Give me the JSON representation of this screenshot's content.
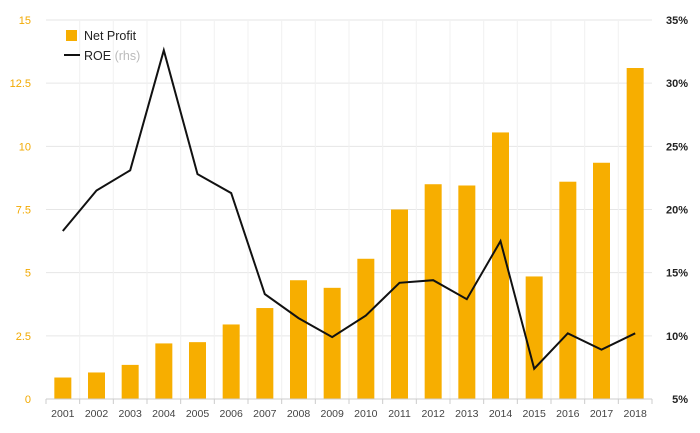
{
  "chart_data": {
    "type": "bar",
    "categories": [
      "2001",
      "2002",
      "2003",
      "2004",
      "2005",
      "2006",
      "2007",
      "2008",
      "2009",
      "2010",
      "2011",
      "2012",
      "2013",
      "2014",
      "2015",
      "2016",
      "2017",
      "2018"
    ],
    "series": [
      {
        "name": "Net Profit",
        "kind": "bar",
        "axis": "left",
        "color": "#f7ae00",
        "values": [
          0.85,
          1.05,
          1.35,
          2.2,
          2.25,
          2.95,
          3.6,
          4.7,
          4.4,
          5.55,
          7.5,
          8.5,
          8.45,
          10.55,
          4.85,
          8.6,
          9.35,
          13.1
        ]
      },
      {
        "name": "ROE",
        "kind": "line",
        "axis": "right",
        "color": "#111111",
        "values": [
          18.3,
          21.5,
          23.1,
          32.6,
          22.8,
          21.3,
          13.3,
          11.4,
          9.9,
          11.6,
          14.2,
          14.4,
          12.9,
          17.5,
          7.4,
          10.2,
          8.9,
          10.2
        ]
      }
    ],
    "ylim_left": [
      0,
      15
    ],
    "yticks_left": [
      "0",
      "2.5",
      "5",
      "7.5",
      "10",
      "12.5",
      "15"
    ],
    "ylim_right": [
      5,
      35
    ],
    "yticks_right": [
      "5%",
      "10%",
      "15%",
      "20%",
      "25%",
      "30%",
      "35%"
    ],
    "legend": {
      "position": "top-left",
      "items": [
        {
          "label": "Net Profit",
          "suffix": ""
        },
        {
          "label": "ROE",
          "suffix": "(rhs)"
        }
      ]
    },
    "grid": true
  }
}
